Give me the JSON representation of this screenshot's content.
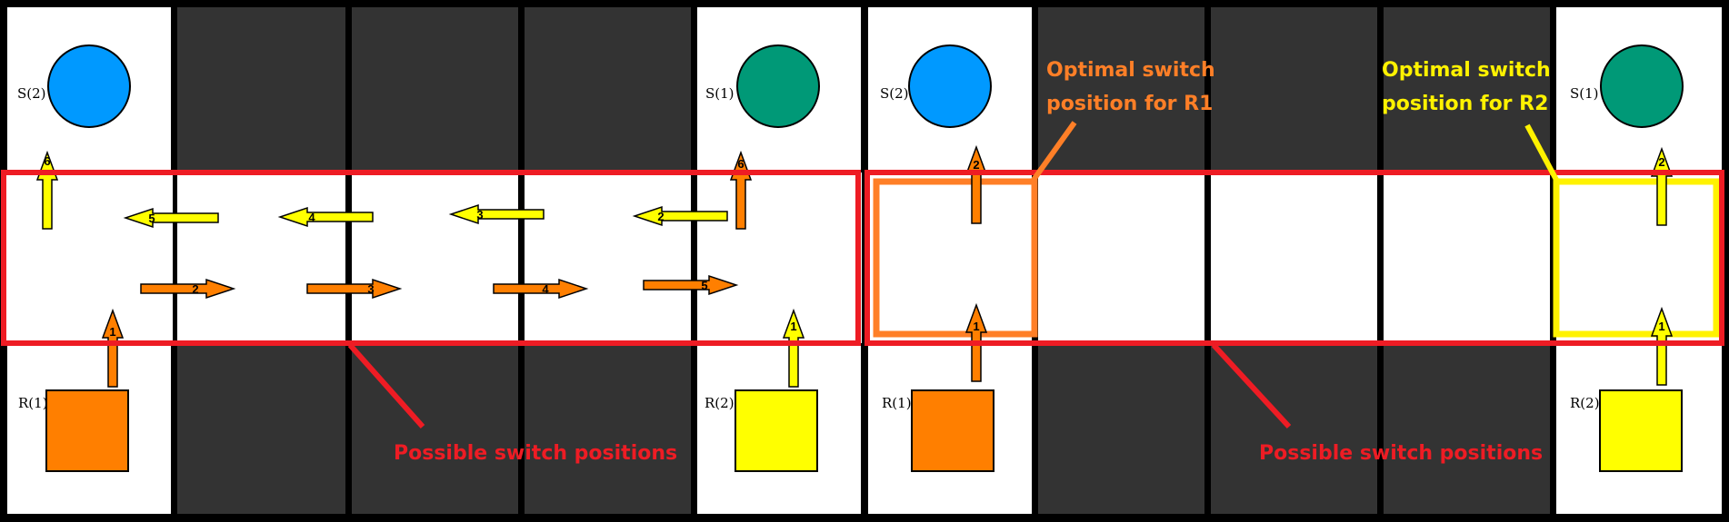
{
  "colors": {
    "orange": "#FF7F00",
    "yellow": "#FFFF00",
    "blue": "#0099FF",
    "green": "#009977",
    "red": "#EE1C24",
    "dark": "#333333"
  },
  "panels": [
    {
      "id": "left",
      "s2_label": "S(2)",
      "s1_label": "S(1)",
      "r1_label": "R(1)",
      "r2_label": "R(2)",
      "caption": "Possible switch positions",
      "orange_steps": [
        "1",
        "2",
        "3",
        "4",
        "5",
        "6"
      ],
      "yellow_steps": [
        "1",
        "2",
        "3",
        "4",
        "5",
        "6"
      ]
    },
    {
      "id": "right",
      "s2_label": "S(2)",
      "s1_label": "S(1)",
      "r1_label": "R(1)",
      "r2_label": "R(2)",
      "caption": "Possible switch positions",
      "orange_steps": [
        "1",
        "2"
      ],
      "yellow_steps": [
        "1",
        "2"
      ],
      "r1_opt_line1": "Optimal switch",
      "r1_opt_line2": "position for R1",
      "r2_opt_line1": "Optimal switch",
      "r2_opt_line2": "position for R2"
    }
  ]
}
